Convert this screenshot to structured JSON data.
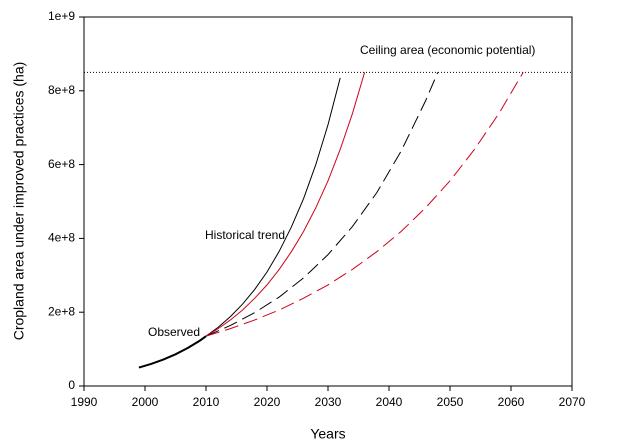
{
  "chart_data": {
    "type": "line",
    "x_label": "Years",
    "y_label": "Cropland area under improved practices (ha)",
    "xlim": [
      1990,
      2070
    ],
    "xticks": [
      1990,
      2000,
      2010,
      2020,
      2030,
      2040,
      2050,
      2060,
      2070
    ],
    "ylim": [
      0,
      1000000000
    ],
    "yticks": [
      0,
      {
        "value": 200000000,
        "label": "2e+8"
      },
      {
        "value": 400000000,
        "label": "4e+8"
      },
      {
        "value": 600000000,
        "label": "6e+8"
      },
      {
        "value": 800000000,
        "label": "8e+8"
      },
      {
        "value": 1000000000,
        "label": "1e+9"
      }
    ],
    "ceiling": 850000000,
    "annotations": [
      "Ceiling area (economic potential)",
      "Historical trend",
      "Observed"
    ],
    "series": [
      {
        "color": "#000000",
        "dash": false,
        "width": 2,
        "x": [
          1999,
          2001,
          2003,
          2005,
          2007,
          2009,
          2010
        ],
        "values": [
          50000000,
          59900000,
          71700000,
          85900000,
          103000000,
          123000000,
          135000000
        ]
      },
      {
        "color": "#000000",
        "dash": false,
        "width": 1,
        "x": [
          2010,
          2012,
          2014,
          2016,
          2018,
          2020,
          2022,
          2024,
          2026,
          2028,
          2030,
          2032
        ],
        "values": [
          135000000,
          159300000,
          188000000,
          222000000,
          262000000,
          309000000,
          365000000,
          431000000,
          508000000,
          600000000,
          708000000,
          835000000
        ]
      },
      {
        "color": "#d0021b",
        "dash": false,
        "width": 1,
        "x": [
          2010,
          2012,
          2014,
          2016,
          2018,
          2020,
          2022,
          2024,
          2026,
          2028,
          2030,
          2032,
          2034,
          2036
        ],
        "values": [
          135000000,
          155500000,
          179000000,
          206000000,
          238000000,
          274000000,
          316000000,
          364000000,
          419000000,
          483000000,
          556000000,
          641000000,
          738000000,
          850000000
        ]
      },
      {
        "color": "#000000",
        "dash": true,
        "width": 1,
        "x": [
          2010,
          2014,
          2018,
          2022,
          2026,
          2030,
          2034,
          2038,
          2042,
          2046,
          2048
        ],
        "values": [
          135000000,
          164000000,
          199000000,
          241000000,
          293000000,
          356000000,
          432000000,
          524000000,
          637000000,
          773000000,
          850000000
        ]
      },
      {
        "color": "#d0021b",
        "dash": true,
        "width": 1,
        "x": [
          2010,
          2014,
          2018,
          2022,
          2026,
          2030,
          2034,
          2038,
          2042,
          2046,
          2050,
          2054,
          2058,
          2062
        ],
        "values": [
          135000000,
          155500000,
          179000000,
          206000000,
          238000000,
          274000000,
          316000000,
          364000000,
          419000000,
          483000000,
          556000000,
          641000000,
          738000000,
          850000000
        ]
      }
    ]
  }
}
